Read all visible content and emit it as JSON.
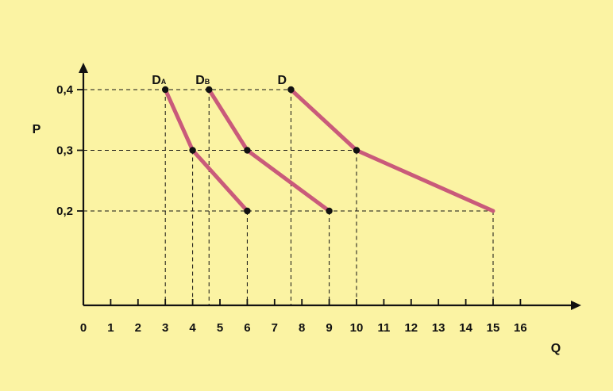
{
  "chart_data": {
    "type": "line",
    "xlabel": "Q",
    "ylabel": "P",
    "xlim": [
      0,
      16
    ],
    "ylim": [
      0.09,
      0.44
    ],
    "x_ticks": [
      "0",
      "1",
      "2",
      "3",
      "4",
      "5",
      "6",
      "7",
      "8",
      "9",
      "10",
      "11",
      "12",
      "13",
      "14",
      "15",
      "16"
    ],
    "y_ticks": [
      {
        "value": 0.4,
        "label": "0,4"
      },
      {
        "value": 0.3,
        "label": "0,3"
      },
      {
        "value": 0.2,
        "label": "0,2"
      }
    ],
    "series": [
      {
        "name": "DA",
        "label_main": "D",
        "label_sub": "A",
        "points": [
          {
            "x": 3,
            "y": 0.4
          },
          {
            "x": 4,
            "y": 0.3
          },
          {
            "x": 6,
            "y": 0.2
          }
        ],
        "markers": [
          true,
          true,
          true
        ]
      },
      {
        "name": "DB",
        "label_main": "D",
        "label_sub": "B",
        "points": [
          {
            "x": 4.6,
            "y": 0.4
          },
          {
            "x": 6,
            "y": 0.3
          },
          {
            "x": 9,
            "y": 0.2
          }
        ],
        "markers": [
          true,
          true,
          true
        ]
      },
      {
        "name": "D",
        "label_main": "D",
        "label_sub": "",
        "points": [
          {
            "x": 7.6,
            "y": 0.4
          },
          {
            "x": 10,
            "y": 0.3
          },
          {
            "x": 15,
            "y": 0.2
          }
        ],
        "markers": [
          true,
          true,
          false
        ]
      }
    ],
    "colors": {
      "curve": "#c95a7a",
      "background": "#fbf3a3",
      "ink": "#111111"
    },
    "grid": false,
    "guide_lines": "dashed"
  }
}
